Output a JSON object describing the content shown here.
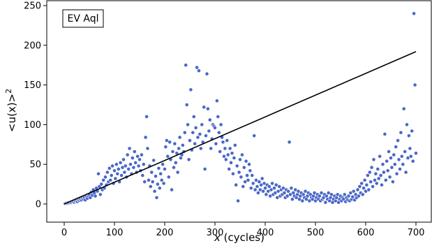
{
  "chart_data": {
    "type": "scatter",
    "title": "",
    "annotation": "EV Aql",
    "xlabel_italic": "x",
    "xlabel_rest": " (cycles)",
    "ylabel": "<u(x)>",
    "ylabel_sup": "2",
    "xlim": [
      -20,
      720
    ],
    "ylim": [
      -10,
      250
    ],
    "x_ticks": [
      0,
      100,
      200,
      300,
      400,
      500,
      600,
      700
    ],
    "y_ticks": [
      0,
      50,
      100,
      150,
      200,
      250
    ],
    "grid": false,
    "marker_color": "#4a67c8",
    "line_color": "#000000",
    "fit_line": {
      "x": [
        0,
        700
      ],
      "y": [
        0,
        192
      ]
    },
    "points": [
      [
        2,
        0.5
      ],
      [
        4,
        1
      ],
      [
        6,
        0.8
      ],
      [
        8,
        1.5
      ],
      [
        10,
        1.2
      ],
      [
        12,
        2
      ],
      [
        14,
        1.8
      ],
      [
        16,
        2.5
      ],
      [
        18,
        3
      ],
      [
        20,
        2.2
      ],
      [
        22,
        3.5
      ],
      [
        24,
        4
      ],
      [
        26,
        3
      ],
      [
        28,
        5
      ],
      [
        30,
        4.5
      ],
      [
        32,
        6
      ],
      [
        34,
        5
      ],
      [
        36,
        7
      ],
      [
        38,
        6
      ],
      [
        40,
        8
      ],
      [
        42,
        5
      ],
      [
        44,
        9
      ],
      [
        46,
        7
      ],
      [
        48,
        10
      ],
      [
        50,
        12
      ],
      [
        52,
        8
      ],
      [
        54,
        15
      ],
      [
        56,
        11
      ],
      [
        58,
        18
      ],
      [
        60,
        14
      ],
      [
        62,
        10
      ],
      [
        64,
        20
      ],
      [
        66,
        16
      ],
      [
        68,
        38
      ],
      [
        70,
        22
      ],
      [
        72,
        12
      ],
      [
        74,
        25
      ],
      [
        76,
        18
      ],
      [
        78,
        30
      ],
      [
        80,
        20
      ],
      [
        82,
        34
      ],
      [
        84,
        24
      ],
      [
        86,
        40
      ],
      [
        88,
        28
      ],
      [
        90,
        45
      ],
      [
        92,
        30
      ],
      [
        94,
        36
      ],
      [
        96,
        48
      ],
      [
        98,
        26
      ],
      [
        100,
        42
      ],
      [
        102,
        32
      ],
      [
        104,
        50
      ],
      [
        106,
        38
      ],
      [
        108,
        44
      ],
      [
        110,
        28
      ],
      [
        112,
        52
      ],
      [
        114,
        36
      ],
      [
        116,
        46
      ],
      [
        118,
        56
      ],
      [
        120,
        40
      ],
      [
        122,
        48
      ],
      [
        124,
        34
      ],
      [
        126,
        62
      ],
      [
        128,
        44
      ],
      [
        130,
        70
      ],
      [
        132,
        50
      ],
      [
        134,
        38
      ],
      [
        136,
        58
      ],
      [
        138,
        46
      ],
      [
        140,
        66
      ],
      [
        142,
        52
      ],
      [
        144,
        40
      ],
      [
        146,
        60
      ],
      [
        148,
        48
      ],
      [
        150,
        56
      ],
      [
        152,
        42
      ],
      [
        154,
        62
      ],
      [
        156,
        36
      ],
      [
        158,
        50
      ],
      [
        160,
        28
      ],
      [
        162,
        84
      ],
      [
        164,
        110
      ],
      [
        166,
        70
      ],
      [
        168,
        30
      ],
      [
        170,
        48
      ],
      [
        172,
        22
      ],
      [
        174,
        40
      ],
      [
        176,
        28
      ],
      [
        178,
        55
      ],
      [
        180,
        16
      ],
      [
        182,
        35
      ],
      [
        184,
        8
      ],
      [
        186,
        25
      ],
      [
        188,
        45
      ],
      [
        190,
        20
      ],
      [
        192,
        38
      ],
      [
        194,
        30
      ],
      [
        196,
        50
      ],
      [
        198,
        26
      ],
      [
        200,
        44
      ],
      [
        202,
        72
      ],
      [
        204,
        80
      ],
      [
        206,
        60
      ],
      [
        208,
        34
      ],
      [
        210,
        78
      ],
      [
        212,
        56
      ],
      [
        214,
        18
      ],
      [
        216,
        66
      ],
      [
        218,
        46
      ],
      [
        220,
        76
      ],
      [
        222,
        52
      ],
      [
        224,
        64
      ],
      [
        226,
        40
      ],
      [
        228,
        70
      ],
      [
        230,
        84
      ],
      [
        232,
        58
      ],
      [
        234,
        62
      ],
      [
        236,
        74
      ],
      [
        238,
        66
      ],
      [
        240,
        90
      ],
      [
        242,
        175
      ],
      [
        244,
        125
      ],
      [
        246,
        100
      ],
      [
        248,
        56
      ],
      [
        250,
        80
      ],
      [
        252,
        144
      ],
      [
        254,
        68
      ],
      [
        256,
        90
      ],
      [
        258,
        110
      ],
      [
        260,
        76
      ],
      [
        262,
        96
      ],
      [
        264,
        172
      ],
      [
        266,
        84
      ],
      [
        268,
        168
      ],
      [
        270,
        88
      ],
      [
        272,
        70
      ],
      [
        274,
        100
      ],
      [
        276,
        78
      ],
      [
        278,
        122
      ],
      [
        280,
        44
      ],
      [
        282,
        86
      ],
      [
        284,
        164
      ],
      [
        286,
        120
      ],
      [
        288,
        92
      ],
      [
        290,
        106
      ],
      [
        292,
        70
      ],
      [
        294,
        82
      ],
      [
        296,
        100
      ],
      [
        298,
        98
      ],
      [
        300,
        96
      ],
      [
        302,
        76
      ],
      [
        304,
        130
      ],
      [
        306,
        110
      ],
      [
        308,
        90
      ],
      [
        310,
        66
      ],
      [
        312,
        100
      ],
      [
        314,
        84
      ],
      [
        316,
        78
      ],
      [
        318,
        60
      ],
      [
        320,
        70
      ],
      [
        322,
        56
      ],
      [
        324,
        80
      ],
      [
        326,
        62
      ],
      [
        328,
        44
      ],
      [
        330,
        70
      ],
      [
        332,
        52
      ],
      [
        334,
        64
      ],
      [
        336,
        38
      ],
      [
        338,
        58
      ],
      [
        340,
        74
      ],
      [
        342,
        24
      ],
      [
        344,
        48
      ],
      [
        346,
        4
      ],
      [
        348,
        40
      ],
      [
        350,
        56
      ],
      [
        352,
        34
      ],
      [
        354,
        62
      ],
      [
        356,
        22
      ],
      [
        358,
        46
      ],
      [
        360,
        28
      ],
      [
        362,
        54
      ],
      [
        364,
        36
      ],
      [
        366,
        30
      ],
      [
        368,
        50
      ],
      [
        370,
        42
      ],
      [
        372,
        20
      ],
      [
        374,
        36
      ],
      [
        376,
        26
      ],
      [
        378,
        86
      ],
      [
        380,
        18
      ],
      [
        382,
        30
      ],
      [
        384,
        22
      ],
      [
        386,
        14
      ],
      [
        388,
        28
      ],
      [
        390,
        18
      ],
      [
        392,
        24
      ],
      [
        394,
        32
      ],
      [
        396,
        16
      ],
      [
        398,
        26
      ],
      [
        400,
        20
      ],
      [
        402,
        12
      ],
      [
        404,
        24
      ],
      [
        406,
        16
      ],
      [
        408,
        22
      ],
      [
        410,
        10
      ],
      [
        412,
        18
      ],
      [
        414,
        26
      ],
      [
        416,
        12
      ],
      [
        418,
        20
      ],
      [
        420,
        14
      ],
      [
        422,
        24
      ],
      [
        424,
        8
      ],
      [
        426,
        16
      ],
      [
        428,
        22
      ],
      [
        430,
        10
      ],
      [
        432,
        18
      ],
      [
        434,
        12
      ],
      [
        436,
        20
      ],
      [
        438,
        14
      ],
      [
        440,
        8
      ],
      [
        442,
        18
      ],
      [
        444,
        10
      ],
      [
        446,
        16
      ],
      [
        448,
        78
      ],
      [
        450,
        12
      ],
      [
        452,
        20
      ],
      [
        454,
        6
      ],
      [
        456,
        14
      ],
      [
        458,
        10
      ],
      [
        460,
        18
      ],
      [
        462,
        8
      ],
      [
        464,
        12
      ],
      [
        466,
        16
      ],
      [
        468,
        6
      ],
      [
        470,
        10
      ],
      [
        472,
        14
      ],
      [
        474,
        4
      ],
      [
        476,
        12
      ],
      [
        478,
        8
      ],
      [
        480,
        16
      ],
      [
        482,
        6
      ],
      [
        484,
        10
      ],
      [
        486,
        14
      ],
      [
        488,
        4
      ],
      [
        490,
        12
      ],
      [
        492,
        8
      ],
      [
        494,
        6
      ],
      [
        496,
        10
      ],
      [
        498,
        14
      ],
      [
        500,
        4
      ],
      [
        502,
        8
      ],
      [
        504,
        12
      ],
      [
        506,
        6
      ],
      [
        508,
        10
      ],
      [
        510,
        4
      ],
      [
        512,
        14
      ],
      [
        514,
        6
      ],
      [
        516,
        8
      ],
      [
        518,
        12
      ],
      [
        520,
        2
      ],
      [
        522,
        10
      ],
      [
        524,
        6
      ],
      [
        526,
        14
      ],
      [
        528,
        4
      ],
      [
        530,
        8
      ],
      [
        532,
        12
      ],
      [
        534,
        2
      ],
      [
        536,
        6
      ],
      [
        538,
        10
      ],
      [
        540,
        4
      ],
      [
        542,
        8
      ],
      [
        544,
        12
      ],
      [
        546,
        2
      ],
      [
        548,
        6
      ],
      [
        550,
        10
      ],
      [
        552,
        4
      ],
      [
        554,
        8
      ],
      [
        556,
        6
      ],
      [
        558,
        12
      ],
      [
        560,
        3
      ],
      [
        562,
        8
      ],
      [
        564,
        5
      ],
      [
        566,
        10
      ],
      [
        568,
        4
      ],
      [
        570,
        14
      ],
      [
        572,
        6
      ],
      [
        574,
        9
      ],
      [
        576,
        16
      ],
      [
        578,
        5
      ],
      [
        580,
        12
      ],
      [
        582,
        8
      ],
      [
        584,
        18
      ],
      [
        586,
        10
      ],
      [
        588,
        22
      ],
      [
        590,
        14
      ],
      [
        592,
        26
      ],
      [
        594,
        12
      ],
      [
        596,
        20
      ],
      [
        598,
        30
      ],
      [
        600,
        16
      ],
      [
        602,
        24
      ],
      [
        604,
        36
      ],
      [
        606,
        18
      ],
      [
        608,
        40
      ],
      [
        610,
        28
      ],
      [
        612,
        46
      ],
      [
        614,
        22
      ],
      [
        616,
        56
      ],
      [
        618,
        30
      ],
      [
        620,
        38
      ],
      [
        622,
        26
      ],
      [
        624,
        44
      ],
      [
        626,
        32
      ],
      [
        628,
        60
      ],
      [
        630,
        36
      ],
      [
        632,
        24
      ],
      [
        634,
        50
      ],
      [
        636,
        40
      ],
      [
        638,
        88
      ],
      [
        640,
        30
      ],
      [
        642,
        54
      ],
      [
        644,
        42
      ],
      [
        646,
        66
      ],
      [
        648,
        34
      ],
      [
        650,
        58
      ],
      [
        652,
        46
      ],
      [
        654,
        28
      ],
      [
        656,
        62
      ],
      [
        658,
        50
      ],
      [
        660,
        72
      ],
      [
        662,
        38
      ],
      [
        664,
        80
      ],
      [
        666,
        56
      ],
      [
        668,
        44
      ],
      [
        670,
        90
      ],
      [
        672,
        60
      ],
      [
        674,
        50
      ],
      [
        676,
        120
      ],
      [
        678,
        66
      ],
      [
        680,
        40
      ],
      [
        682,
        100
      ],
      [
        684,
        58
      ],
      [
        686,
        86
      ],
      [
        688,
        70
      ],
      [
        690,
        60
      ],
      [
        692,
        92
      ],
      [
        694,
        54
      ],
      [
        696,
        240
      ],
      [
        698,
        150
      ],
      [
        700,
        64
      ]
    ]
  }
}
